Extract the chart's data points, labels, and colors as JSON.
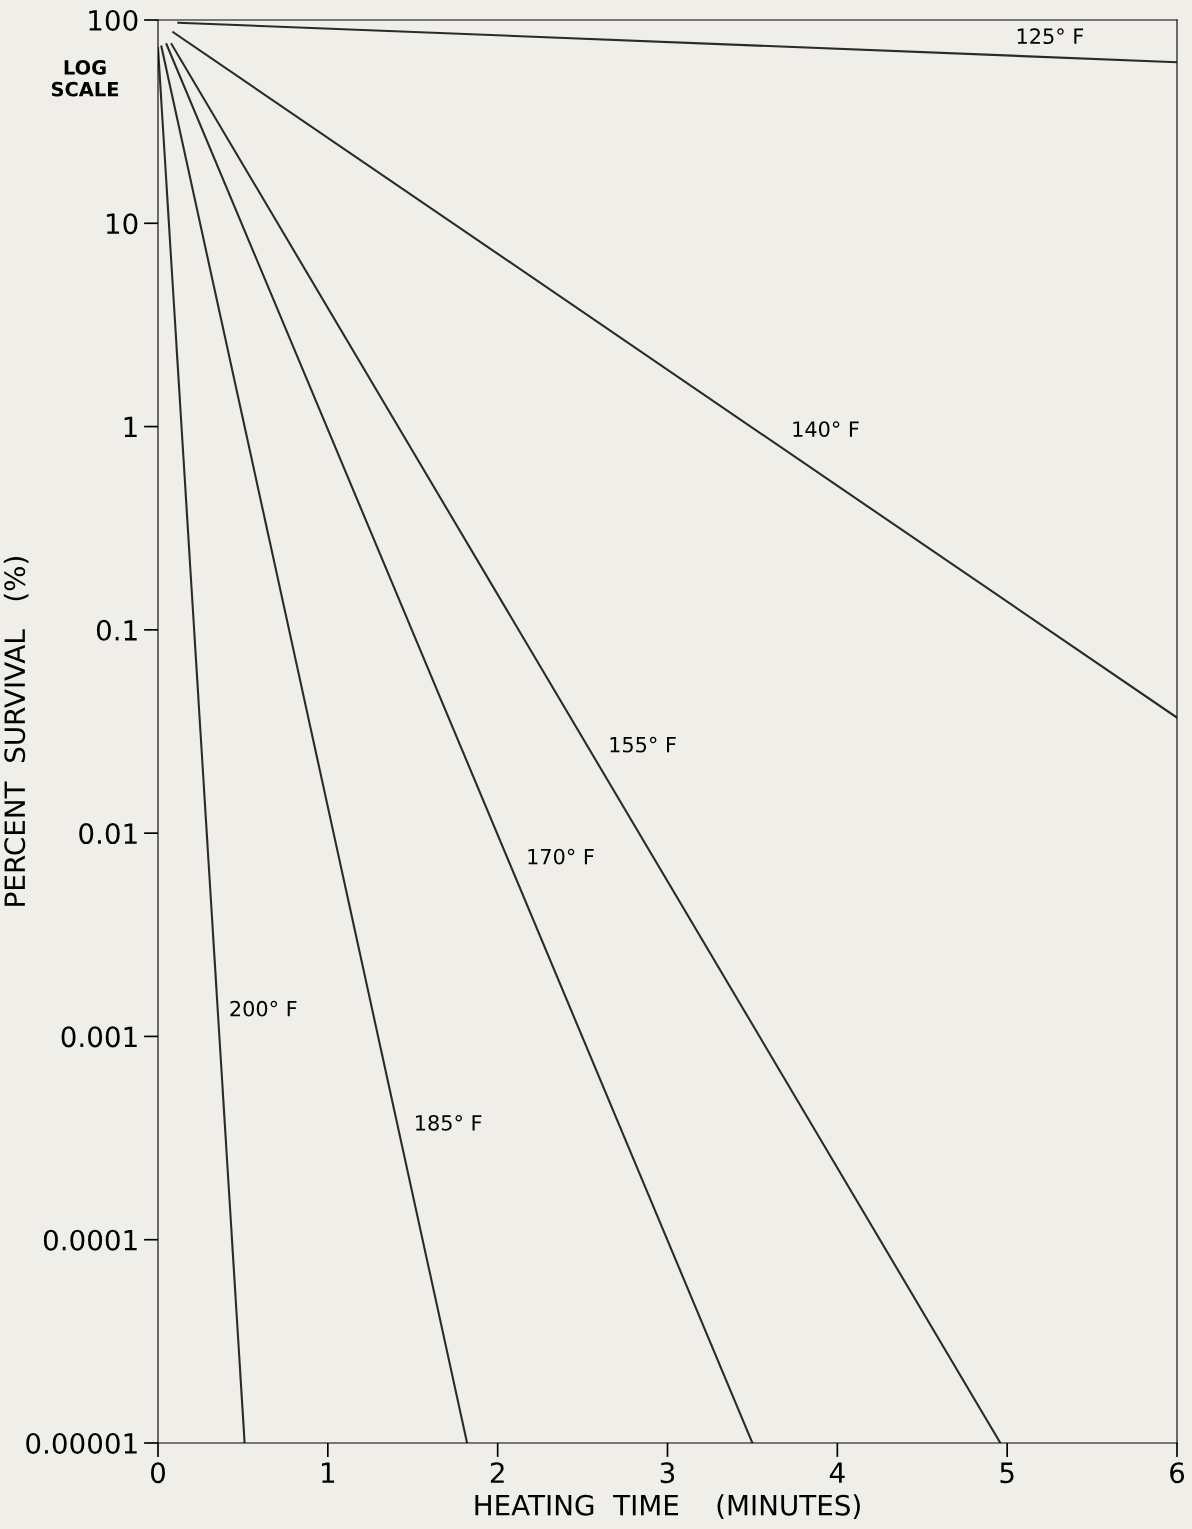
{
  "chart_data": {
    "type": "line",
    "xlabel": "HEATING  TIME    (MINUTES)",
    "ylabel": "PERCENT  SURVIVAL   (%)",
    "log": "y",
    "xlim": [
      0,
      6
    ],
    "xticks": [
      0,
      1,
      2,
      3,
      4,
      5,
      6
    ],
    "ylim": [
      1e-05,
      100
    ],
    "yticks": [
      {
        "value": 1e-05,
        "label": "0.00001"
      },
      {
        "value": 0.0001,
        "label": "0.0001"
      },
      {
        "value": 0.001,
        "label": "0.001"
      },
      {
        "value": 0.01,
        "label": "0.01"
      },
      {
        "value": 0.1,
        "label": "0.1"
      },
      {
        "value": 1,
        "label": "1"
      },
      {
        "value": 10,
        "label": "10"
      },
      {
        "value": 100,
        "label": "100"
      }
    ],
    "grid": false,
    "legend": false,
    "marker": "none",
    "line_style": "solid",
    "series": [
      {
        "name": "125° F",
        "color": "#2a2a2a",
        "x": [
          0.12,
          6
        ],
        "values": [
          97,
          62
        ]
      },
      {
        "name": "140° F",
        "color": "#2a2a2a",
        "x": [
          0.09,
          6
        ],
        "values": [
          87,
          0.037
        ]
      },
      {
        "name": "155° F",
        "color": "#2a2a2a",
        "x": [
          0.08,
          4.96
        ],
        "values": [
          76,
          1e-05
        ]
      },
      {
        "name": "170° F",
        "color": "#2a2a2a",
        "x": [
          0.05,
          3.5
        ],
        "values": [
          76,
          1e-05
        ]
      },
      {
        "name": "185° F",
        "color": "#2a2a2a",
        "x": [
          0.02,
          1.82
        ],
        "values": [
          74,
          1e-05
        ]
      },
      {
        "name": "200° F",
        "color": "#2a2a2a",
        "x": [
          0,
          0.51
        ],
        "values": [
          73,
          1e-05
        ]
      }
    ],
    "annotations": [
      "LOG\nSCALE"
    ]
  }
}
